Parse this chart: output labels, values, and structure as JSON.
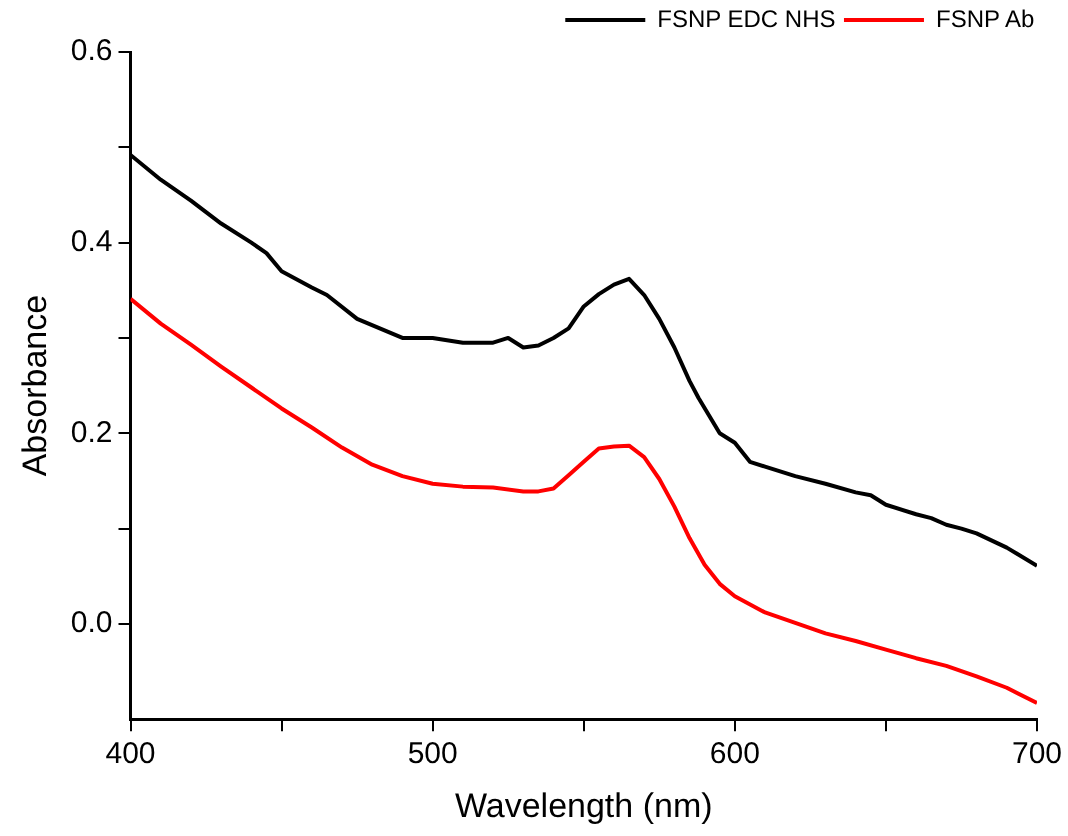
{
  "chart_data": {
    "type": "line",
    "xlabel": "Wavelength (nm)",
    "ylabel": "Absorbance",
    "xlim": [
      400,
      700
    ],
    "ylim": [
      -0.1,
      0.6
    ],
    "xticks": [
      400,
      {
        "value": 450,
        "label": null
      },
      500,
      {
        "value": 550,
        "label": null
      },
      600,
      {
        "value": 650,
        "label": null
      },
      700
    ],
    "yticks": [
      {
        "value": 0.0,
        "label": "0.0"
      },
      {
        "value": 0.1,
        "label": null
      },
      0.2,
      {
        "value": 0.3,
        "label": null
      },
      0.4,
      {
        "value": 0.5,
        "label": null
      },
      0.6
    ],
    "grid": false,
    "legend": "top right",
    "marker": "none",
    "line_style": "solid",
    "series": [
      {
        "name": "FSNP EDC NHS",
        "color": "#000000",
        "x": [
          400,
          410,
          420,
          430,
          440,
          445,
          450,
          460,
          465,
          475,
          490,
          500,
          510,
          520,
          525,
          530,
          535,
          540,
          545,
          550,
          555,
          560,
          565,
          570,
          575,
          580,
          585,
          588,
          595,
          600,
          605,
          610,
          620,
          630,
          640,
          645,
          650,
          660,
          665,
          670,
          675,
          680,
          690,
          700
        ],
        "values": [
          0.492,
          0.466,
          0.444,
          0.42,
          0.4,
          0.389,
          0.37,
          0.353,
          0.345,
          0.32,
          0.3,
          0.3,
          0.295,
          0.295,
          0.3,
          0.29,
          0.292,
          0.3,
          0.31,
          0.333,
          0.346,
          0.356,
          0.362,
          0.345,
          0.32,
          0.29,
          0.255,
          0.237,
          0.2,
          0.19,
          0.17,
          0.165,
          0.155,
          0.147,
          0.138,
          0.135,
          0.125,
          0.115,
          0.111,
          0.104,
          0.1,
          0.095,
          0.08,
          0.061
        ]
      },
      {
        "name": "FSNP Ab",
        "color": "#ff0000",
        "x": [
          400,
          410,
          420,
          430,
          440,
          450,
          460,
          470,
          480,
          490,
          500,
          510,
          520,
          530,
          535,
          540,
          545,
          550,
          555,
          560,
          565,
          570,
          575,
          580,
          585,
          590,
          595,
          600,
          610,
          620,
          630,
          640,
          650,
          660,
          670,
          680,
          690,
          700
        ],
        "values": [
          0.341,
          0.315,
          0.293,
          0.27,
          0.248,
          0.226,
          0.206,
          0.185,
          0.167,
          0.155,
          0.147,
          0.144,
          0.143,
          0.139,
          0.139,
          0.142,
          0.156,
          0.17,
          0.184,
          0.186,
          0.187,
          0.175,
          0.152,
          0.123,
          0.09,
          0.062,
          0.042,
          0.029,
          0.012,
          0.001,
          -0.01,
          -0.018,
          -0.027,
          -0.036,
          -0.044,
          -0.055,
          -0.067,
          -0.083
        ]
      }
    ]
  }
}
